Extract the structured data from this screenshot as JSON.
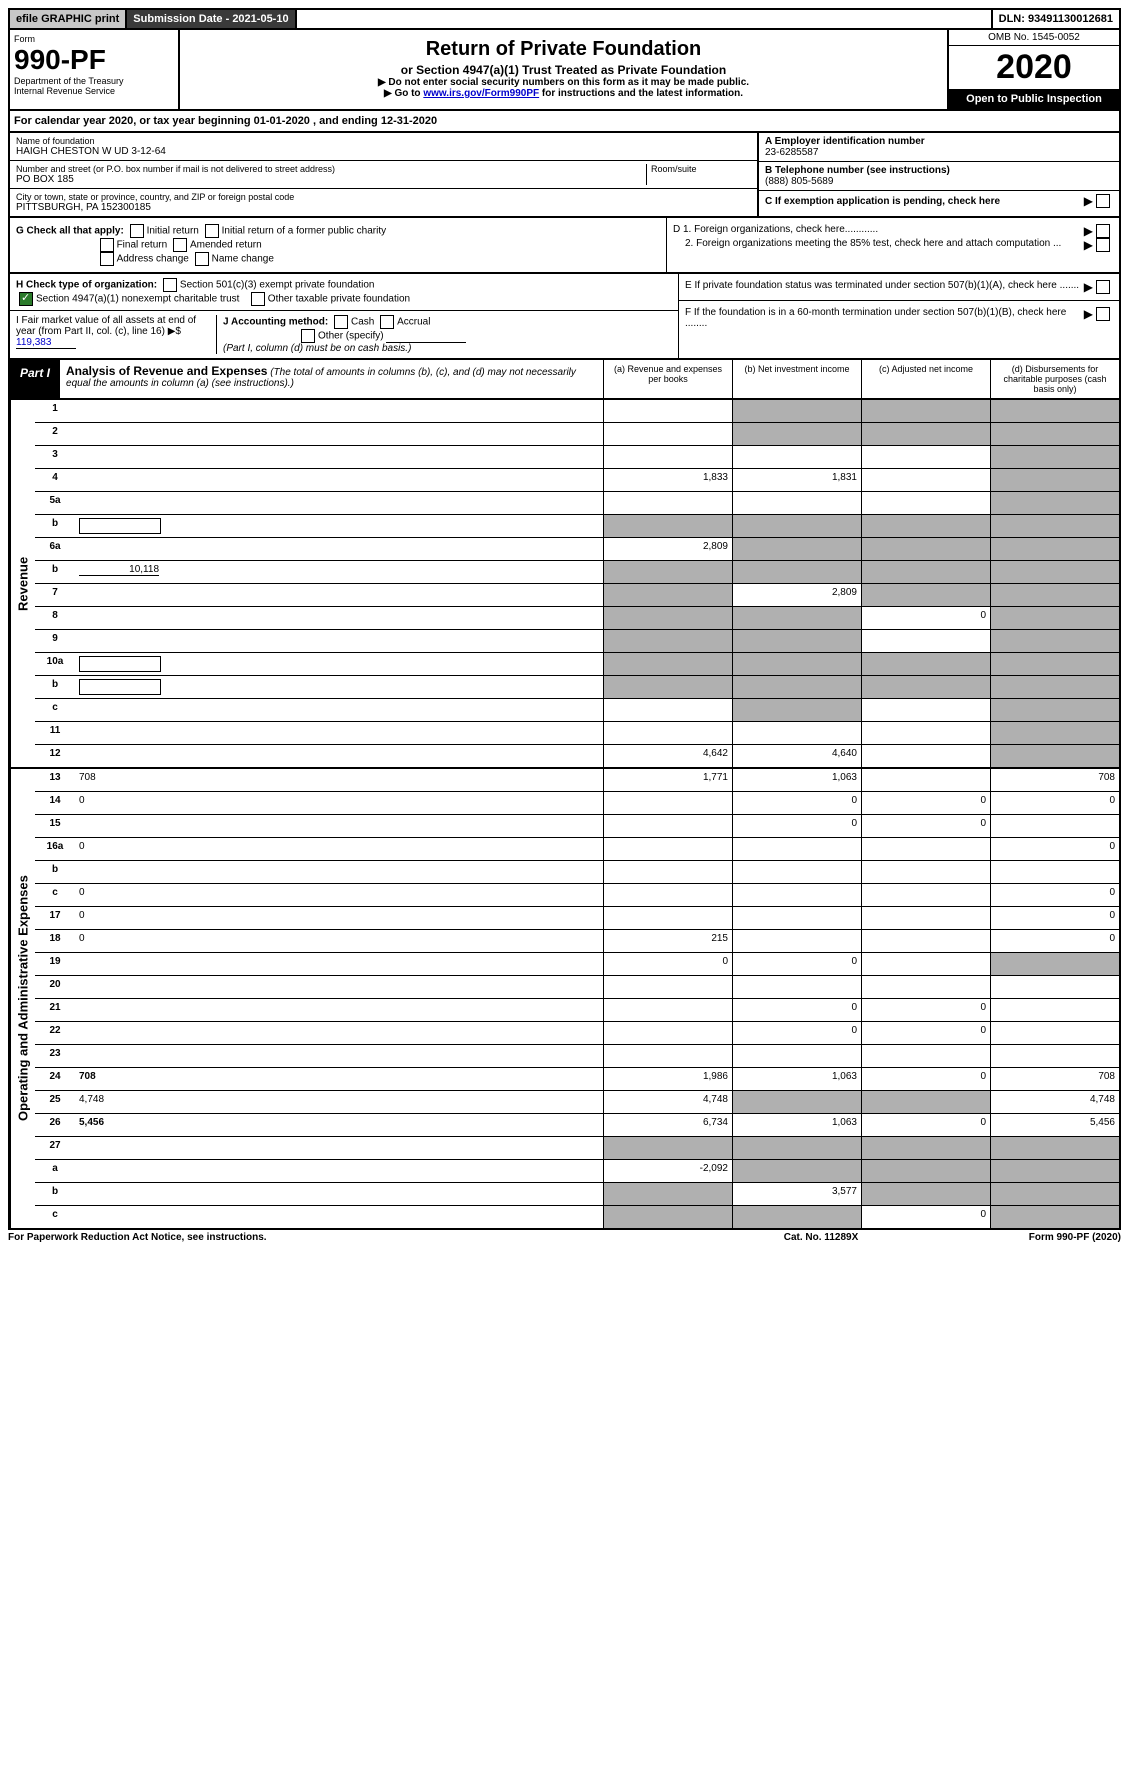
{
  "topBar": {
    "efile": "efile GRAPHIC print",
    "submission": "Submission Date - 2021-05-10",
    "dln": "DLN: 93491130012681"
  },
  "header": {
    "formLabel": "Form",
    "formNum": "990-PF",
    "dept": "Department of the Treasury",
    "irs": "Internal Revenue Service",
    "title": "Return of Private Foundation",
    "subtitle": "or Section 4947(a)(1) Trust Treated as Private Foundation",
    "note1": "▶ Do not enter social security numbers on this form as it may be made public.",
    "note2Prefix": "▶ Go to ",
    "note2Link": "www.irs.gov/Form990PF",
    "note2Suffix": " for instructions and the latest information.",
    "omb": "OMB No. 1545-0052",
    "year": "2020",
    "openInsp": "Open to Public Inspection"
  },
  "calYear": {
    "prefix": "For calendar year 2020, or tax year beginning ",
    "begin": "01-01-2020",
    "mid": " , and ending ",
    "end": "12-31-2020"
  },
  "foundation": {
    "nameLabel": "Name of foundation",
    "name": "HAIGH CHESTON W UD 3-12-64",
    "addrLabel": "Number and street (or P.O. box number if mail is not delivered to street address)",
    "addr": "PO BOX 185",
    "roomLabel": "Room/suite",
    "cityLabel": "City or town, state or province, country, and ZIP or foreign postal code",
    "city": "PITTSBURGH, PA  152300185",
    "einLabel": "A Employer identification number",
    "ein": "23-6285587",
    "phoneLabel": "B Telephone number (see instructions)",
    "phone": "(888) 805-5689",
    "cLabel": "C If exemption application is pending, check here"
  },
  "sectionG": {
    "label": "G Check all that apply:",
    "opts": [
      "Initial return",
      "Initial return of a former public charity",
      "Final return",
      "Amended return",
      "Address change",
      "Name change"
    ]
  },
  "sectionH": {
    "label": "H Check type of organization:",
    "opt1": "Section 501(c)(3) exempt private foundation",
    "opt2": "Section 4947(a)(1) nonexempt charitable trust",
    "opt3": "Other taxable private foundation"
  },
  "sectionI": {
    "label": "I Fair market value of all assets at end of year (from Part II, col. (c), line 16) ▶$ ",
    "value": "119,383"
  },
  "sectionJ": {
    "label": "J Accounting method:",
    "cash": "Cash",
    "accrual": "Accrual",
    "other": "Other (specify)",
    "note": "(Part I, column (d) must be on cash basis.)"
  },
  "rightD": {
    "d1": "D 1. Foreign organizations, check here............",
    "d2": "2. Foreign organizations meeting the 85% test, check here and attach computation ...",
    "e": "E  If private foundation status was terminated under section 507(b)(1)(A), check here .......",
    "f": "F  If the foundation is in a 60-month termination under section 507(b)(1)(B), check here ........"
  },
  "part1": {
    "label": "Part I",
    "title": "Analysis of Revenue and Expenses",
    "titleNote": " (The total of amounts in columns (b), (c), and (d) may not necessarily equal the amounts in column (a) (see instructions).)",
    "colA": "(a)   Revenue and expenses per books",
    "colB": "(b)  Net investment income",
    "colC": "(c)  Adjusted net income",
    "colD": "(d)  Disbursements for charitable purposes (cash basis only)"
  },
  "sideRevenue": "Revenue",
  "sideExpenses": "Operating and Administrative Expenses",
  "rows": [
    {
      "n": "1",
      "d": "",
      "a": "",
      "b": "",
      "bS": true,
      "c": "",
      "cS": true,
      "dS": true
    },
    {
      "n": "2",
      "d": "",
      "a": "",
      "b": "",
      "bS": true,
      "c": "",
      "cS": true,
      "dS": true
    },
    {
      "n": "3",
      "d": "",
      "a": "",
      "b": "",
      "c": "",
      "dS": true
    },
    {
      "n": "4",
      "d": "",
      "a": "1,833",
      "b": "1,831",
      "c": "",
      "dS": true
    },
    {
      "n": "5a",
      "d": "",
      "a": "",
      "b": "",
      "c": "",
      "dS": true
    },
    {
      "n": "b",
      "d": "",
      "a": "",
      "aS": true,
      "b": "",
      "bS": true,
      "c": "",
      "cS": true,
      "dS": true,
      "hasBox": true
    },
    {
      "n": "6a",
      "d": "",
      "a": "2,809",
      "b": "",
      "bS": true,
      "c": "",
      "cS": true,
      "dS": true
    },
    {
      "n": "b",
      "d": "",
      "inline": "10,118",
      "a": "",
      "aS": true,
      "b": "",
      "bS": true,
      "c": "",
      "cS": true,
      "dS": true
    },
    {
      "n": "7",
      "d": "",
      "a": "",
      "aS": true,
      "b": "2,809",
      "c": "",
      "cS": true,
      "dS": true
    },
    {
      "n": "8",
      "d": "",
      "a": "",
      "aS": true,
      "b": "",
      "bS": true,
      "c": "0",
      "dS": true
    },
    {
      "n": "9",
      "d": "",
      "a": "",
      "aS": true,
      "b": "",
      "bS": true,
      "c": "",
      "dS": true
    },
    {
      "n": "10a",
      "d": "",
      "hasBox": true,
      "a": "",
      "aS": true,
      "b": "",
      "bS": true,
      "c": "",
      "cS": true,
      "dS": true
    },
    {
      "n": "b",
      "d": "",
      "hasBox": true,
      "a": "",
      "aS": true,
      "b": "",
      "bS": true,
      "c": "",
      "cS": true,
      "dS": true
    },
    {
      "n": "c",
      "d": "",
      "a": "",
      "b": "",
      "bS": true,
      "c": "",
      "dS": true
    },
    {
      "n": "11",
      "d": "",
      "a": "",
      "b": "",
      "c": "",
      "dS": true
    },
    {
      "n": "12",
      "d": "",
      "bold": true,
      "a": "4,642",
      "b": "4,640",
      "c": "",
      "dS": true
    }
  ],
  "expRows": [
    {
      "n": "13",
      "d": "708",
      "a": "1,771",
      "b": "1,063",
      "c": ""
    },
    {
      "n": "14",
      "d": "0",
      "a": "",
      "b": "0",
      "c": "0"
    },
    {
      "n": "15",
      "d": "",
      "a": "",
      "b": "0",
      "c": "0"
    },
    {
      "n": "16a",
      "d": "0",
      "a": "",
      "b": "",
      "c": ""
    },
    {
      "n": "b",
      "d": "",
      "a": "",
      "b": "",
      "c": ""
    },
    {
      "n": "c",
      "d": "0",
      "a": "",
      "b": "",
      "c": ""
    },
    {
      "n": "17",
      "d": "0",
      "a": "",
      "b": "",
      "c": ""
    },
    {
      "n": "18",
      "d": "0",
      "a": "215",
      "b": "",
      "c": ""
    },
    {
      "n": "19",
      "d": "",
      "a": "0",
      "b": "0",
      "c": "",
      "dS": true
    },
    {
      "n": "20",
      "d": "",
      "a": "",
      "b": "",
      "c": ""
    },
    {
      "n": "21",
      "d": "",
      "a": "",
      "b": "0",
      "c": "0"
    },
    {
      "n": "22",
      "d": "",
      "a": "",
      "b": "0",
      "c": "0"
    },
    {
      "n": "23",
      "d": "",
      "a": "",
      "b": "",
      "c": ""
    },
    {
      "n": "24",
      "d": "708",
      "bold": true,
      "a": "1,986",
      "b": "1,063",
      "c": "0"
    },
    {
      "n": "25",
      "d": "4,748",
      "a": "4,748",
      "b": "",
      "bS": true,
      "c": "",
      "cS": true
    },
    {
      "n": "26",
      "d": "5,456",
      "bold": true,
      "a": "6,734",
      "b": "1,063",
      "c": "0"
    },
    {
      "n": "27",
      "d": "",
      "a": "",
      "aS": true,
      "b": "",
      "bS": true,
      "c": "",
      "cS": true,
      "dS": true
    },
    {
      "n": "a",
      "d": "",
      "bold": true,
      "a": "-2,092",
      "b": "",
      "bS": true,
      "c": "",
      "cS": true,
      "dS": true
    },
    {
      "n": "b",
      "d": "",
      "bold": true,
      "a": "",
      "aS": true,
      "b": "3,577",
      "c": "",
      "cS": true,
      "dS": true
    },
    {
      "n": "c",
      "d": "",
      "bold": true,
      "a": "",
      "aS": true,
      "b": "",
      "bS": true,
      "c": "0",
      "dS": true
    }
  ],
  "footer": {
    "left": "For Paperwork Reduction Act Notice, see instructions.",
    "mid": "Cat. No. 11289X",
    "right": "Form 990-PF (2020)"
  }
}
